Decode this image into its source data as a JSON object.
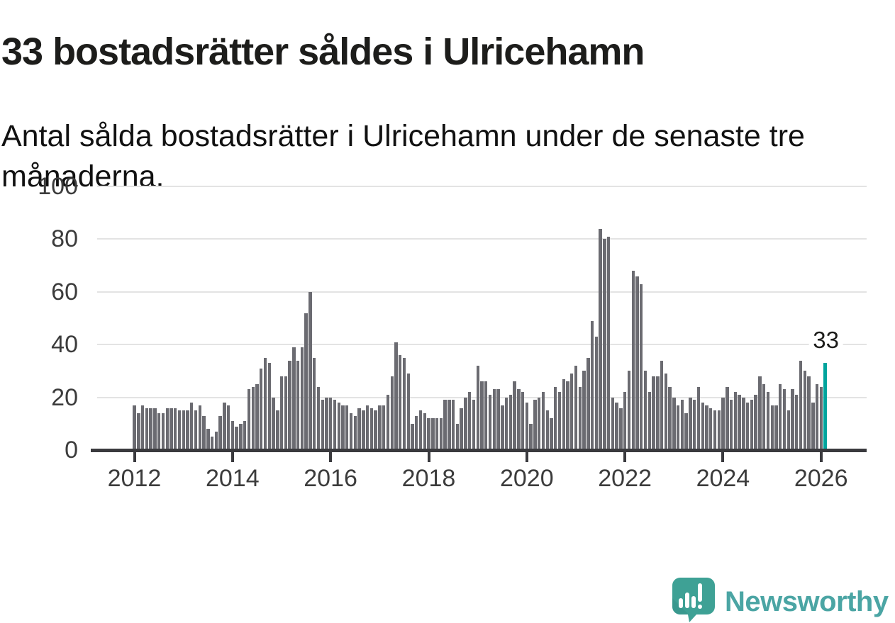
{
  "header": {
    "title": "33 bostadsrätter såldes i Ulricehamn",
    "subtitle": "Antal sålda bostadsrätter i Ulricehamn under de senaste tre månaderna."
  },
  "brand": {
    "name": "Newsworthy",
    "icon": "speech-bubble-bar-chart-exclamation",
    "icon_color": "#3ea195",
    "icon_shade_color": "#359188",
    "wordmark_color": "#4ba5a4"
  },
  "colors": {
    "bar": "#6b6b71",
    "highlight": "#00a49d",
    "gridline": "#e3e3e3",
    "axis": "#3a3a3e",
    "axis_label": "#3c3c3c",
    "text": "#1d1d1b",
    "background": "#ffffff"
  },
  "chart_data": {
    "type": "bar",
    "title": "33 bostadsrätter såldes i Ulricehamn",
    "xlabel": "",
    "ylabel": "",
    "ylim": [
      0,
      100
    ],
    "y_ticks": [
      0,
      20,
      40,
      60,
      80,
      100
    ],
    "x_tick_labels": [
      "2012",
      "2014",
      "2016",
      "2018",
      "2020",
      "2022",
      "2024",
      "2026"
    ],
    "grid": "horizontal",
    "legend": "none",
    "start_month": "2012-01",
    "end_month": "2026-02",
    "unit": "sold condominiums per rolling three months",
    "annotation": {
      "text": "33",
      "applies_to": "last-bar"
    },
    "highlight_last_bar": true,
    "values": [
      17,
      14,
      17,
      16,
      16,
      16,
      14,
      14,
      16,
      16,
      16,
      15,
      15,
      15,
      18,
      15,
      17,
      13,
      8,
      5,
      7,
      13,
      18,
      17,
      11,
      9,
      10,
      11,
      23,
      24,
      25,
      31,
      35,
      33,
      20,
      15,
      28,
      28,
      34,
      39,
      34,
      39,
      52,
      60,
      35,
      24,
      19,
      20,
      20,
      19,
      18,
      17,
      17,
      14,
      13,
      16,
      15,
      17,
      16,
      15,
      17,
      17,
      21,
      28,
      41,
      36,
      35,
      29,
      10,
      13,
      15,
      14,
      12,
      12,
      12,
      12,
      19,
      19,
      19,
      10,
      16,
      20,
      22,
      19,
      32,
      26,
      26,
      21,
      23,
      23,
      17,
      20,
      21,
      26,
      23,
      22,
      18,
      10,
      19,
      20,
      22,
      15,
      12,
      24,
      22,
      27,
      26,
      29,
      32,
      24,
      30,
      35,
      49,
      43,
      84,
      80,
      81,
      20,
      18,
      16,
      22,
      30,
      68,
      66,
      63,
      30,
      22,
      28,
      28,
      34,
      29,
      24,
      20,
      17,
      19,
      14,
      20,
      19,
      24,
      18,
      17,
      16,
      15,
      15,
      20,
      24,
      19,
      22,
      21,
      20,
      18,
      19,
      21,
      28,
      25,
      22,
      17,
      17,
      25,
      23,
      15,
      23,
      21,
      34,
      30,
      28,
      18,
      25,
      24,
      33
    ]
  }
}
